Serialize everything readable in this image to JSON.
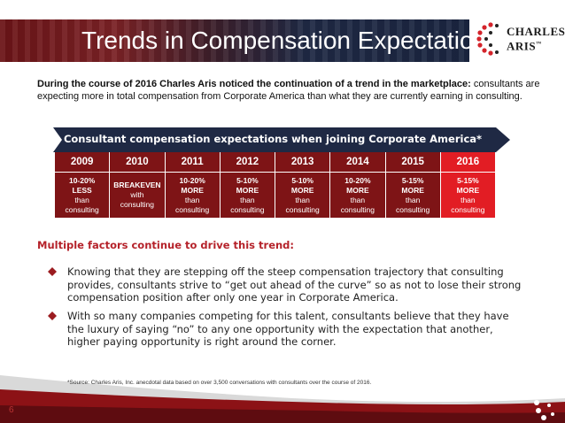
{
  "header": {
    "title": "Trends in Compensation Expectations"
  },
  "logo": {
    "line1": "CHARLES",
    "line2": "ARIS",
    "mark": "™"
  },
  "intro": {
    "bold": "During the course of 2016 Charles Aris noticed the continuation of a trend in the marketplace:",
    "rest": "consultants are expecting more in total compensation from Corporate America than what they are currently earning in consulting."
  },
  "table": {
    "banner": "Consultant compensation expectations when joining Corporate America*",
    "years": [
      "2009",
      "2010",
      "2011",
      "2012",
      "2013",
      "2014",
      "2015",
      "2016"
    ],
    "cells": [
      {
        "line1": "10-20%",
        "line2": "LESS",
        "line3": "than",
        "line4": "consulting"
      },
      {
        "line1": "BREAKEVEN",
        "line2": "with",
        "line3": "consulting",
        "line4": ""
      },
      {
        "line1": "10-20%",
        "line2": "MORE",
        "line3": "than",
        "line4": "consulting"
      },
      {
        "line1": "5-10%",
        "line2": "MORE",
        "line3": "than",
        "line4": "consulting"
      },
      {
        "line1": "5-10%",
        "line2": "MORE",
        "line3": "than",
        "line4": "consulting"
      },
      {
        "line1": "10-20%",
        "line2": "MORE",
        "line3": "than",
        "line4": "consulting"
      },
      {
        "line1": "5-15%",
        "line2": "MORE",
        "line3": "than",
        "line4": "consulting"
      },
      {
        "line1": "5-15%",
        "line2": "MORE",
        "line3": "than",
        "line4": "consulting"
      }
    ],
    "colors": {
      "dark": "#7e1416",
      "highlight": "#e21d24",
      "banner": "#1f2944"
    }
  },
  "subhead": "Multiple factors continue to drive this trend:",
  "bullets": [
    "Knowing that they are stepping off the steep compensation trajectory that consulting provides, consultants strive to “get out ahead of the curve” so as not to lose their strong compensation position after only one year in Corporate America.",
    "With so many companies competing for this talent, consultants believe that they have the luxury of saying “no” to any one opportunity with the expectation that another, higher paying opportunity is right around the corner."
  ],
  "source": "*Source:  Charles Aris, Inc. anecdotal data based on over 3,500 conversations with consultants over the course of 2016.",
  "page_number": "6"
}
